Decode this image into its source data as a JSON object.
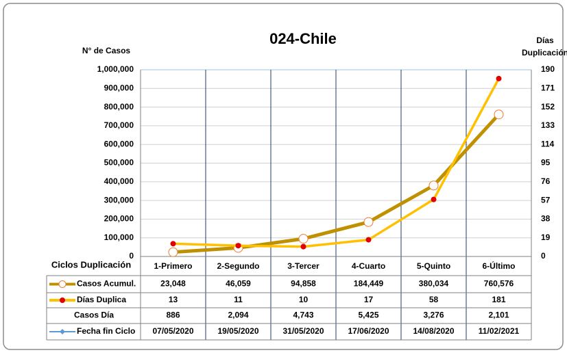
{
  "chart_data": {
    "type": "line",
    "title": "024-Chile",
    "y_label": "N° de Casos",
    "y2_label": "Días Duplicación",
    "table_label": "Ciclos Duplicación",
    "categories": [
      "1-Primero",
      "2-Segundo",
      "3-Tercer",
      "4-Cuarto",
      "5-Quinto",
      "6-Último"
    ],
    "series": [
      {
        "name": "Casos Acumul.",
        "color": "#bf9000",
        "marker_color": "#ed7d31",
        "marker": "open-circle",
        "values": [
          23048,
          46059,
          94858,
          184449,
          380034,
          760576
        ],
        "value_labels": [
          "23,048",
          "46,059",
          "94,858",
          "184,449",
          "380,034",
          "760,576"
        ]
      },
      {
        "name": "Días Duplica",
        "color": "#ffc000",
        "marker_color": "#e00000",
        "marker": "dot",
        "axis": "y2",
        "values": [
          13,
          11,
          10,
          17,
          58,
          181
        ]
      }
    ],
    "table_rows": [
      {
        "name": "Casos Día",
        "values": [
          886,
          2094,
          4743,
          5425,
          3276,
          2101
        ],
        "value_labels": [
          "886",
          "2,094",
          "4,743",
          "5,425",
          "3,276",
          "2,101"
        ]
      },
      {
        "name": "Fecha fin Ciclo",
        "color": "#5b9bd5",
        "marker": "diamond",
        "values": [
          "07/05/2020",
          "19/05/2020",
          "31/05/2020",
          "17/06/2020",
          "14/08/2020",
          "11/02/2021"
        ]
      }
    ],
    "ylim": [
      0,
      1000000
    ],
    "yticks": [
      {
        "value": 0,
        "label": "0"
      },
      {
        "value": 100000,
        "label": "100,000"
      },
      {
        "value": 200000,
        "label": "200,000"
      },
      {
        "value": 300000,
        "label": "300,000"
      },
      {
        "value": 400000,
        "label": "400,000"
      },
      {
        "value": 500000,
        "label": "500,000"
      },
      {
        "value": 600000,
        "label": "600,000"
      },
      {
        "value": 700000,
        "label": "700,000"
      },
      {
        "value": 800000,
        "label": "800,000"
      },
      {
        "value": 900000,
        "label": "900,000"
      },
      {
        "value": 1000000,
        "label": "1,000,000"
      }
    ],
    "y2lim": [
      0,
      190
    ],
    "y2ticks": [
      0,
      19,
      38,
      57,
      76,
      95,
      114,
      133,
      152,
      171,
      190
    ],
    "grid": true
  }
}
